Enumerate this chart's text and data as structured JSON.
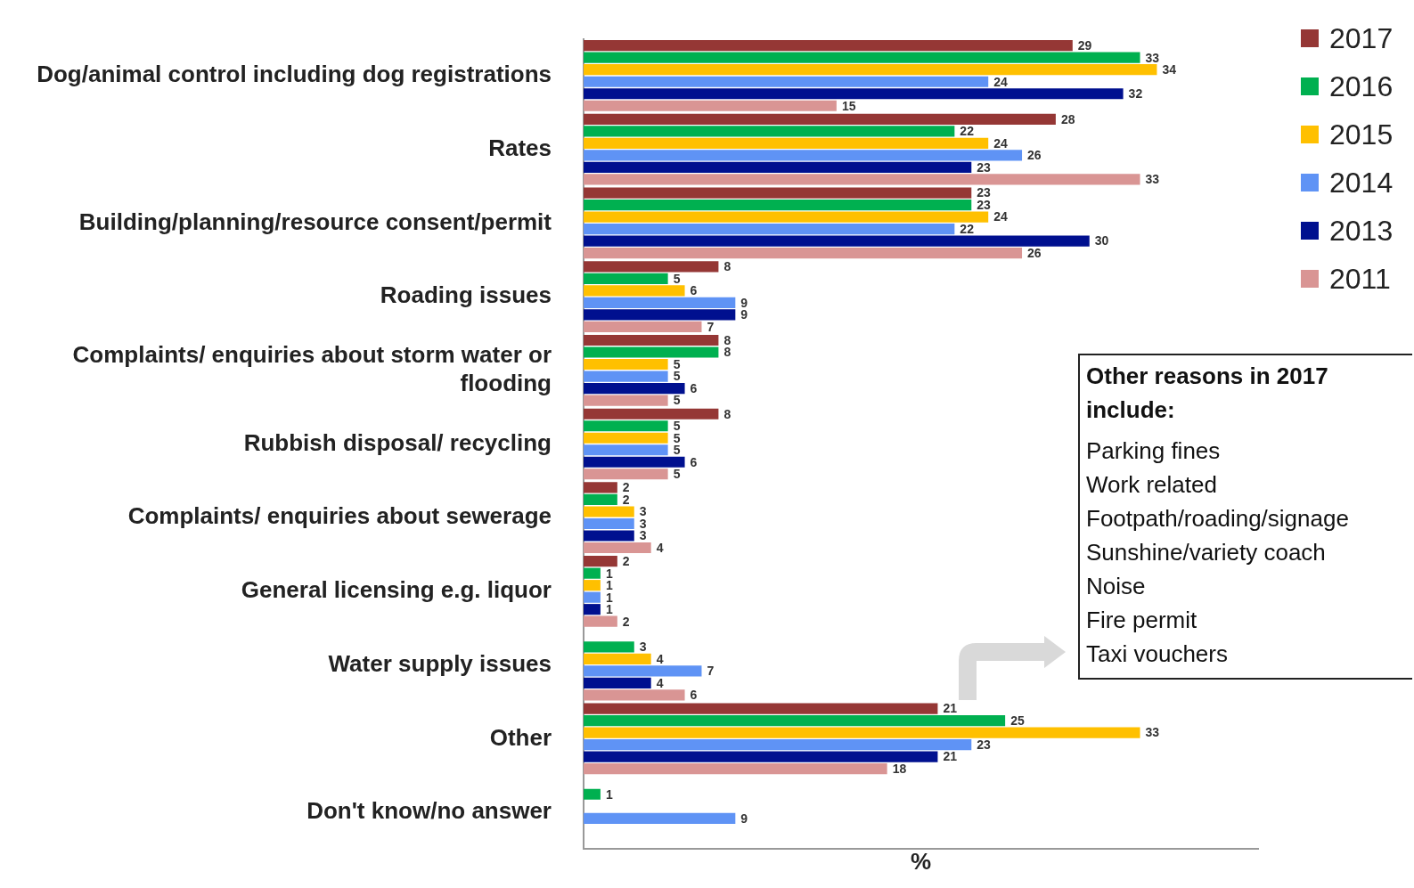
{
  "chart_data": {
    "type": "bar",
    "orientation": "horizontal",
    "xlabel": "%",
    "categories": [
      "Dog/animal control including dog registrations",
      "Rates",
      "Building/planning/resource consent/permit",
      "Roading issues",
      "Complaints/ enquiries about storm water or flooding",
      "Rubbish disposal/ recycling",
      "Complaints/ enquiries about sewerage",
      "General licensing e.g. liquor",
      "Water supply issues",
      "Other",
      "Don't know/no answer"
    ],
    "series": [
      {
        "name": "2017",
        "color": "#953735",
        "values": [
          29,
          28,
          23,
          8,
          8,
          8,
          2,
          2,
          null,
          21,
          null
        ]
      },
      {
        "name": "2016",
        "color": "#00b050",
        "values": [
          33,
          22,
          23,
          5,
          8,
          5,
          2,
          1,
          3,
          25,
          1
        ]
      },
      {
        "name": "2015",
        "color": "#ffc000",
        "values": [
          34,
          24,
          24,
          6,
          5,
          5,
          3,
          1,
          4,
          33,
          null
        ]
      },
      {
        "name": "2014",
        "color": "#5f93f5",
        "values": [
          24,
          26,
          22,
          9,
          5,
          5,
          3,
          1,
          7,
          23,
          9
        ]
      },
      {
        "name": "2013",
        "color": "#00108f",
        "values": [
          32,
          23,
          30,
          9,
          6,
          6,
          3,
          1,
          4,
          21,
          null
        ]
      },
      {
        "name": "2011",
        "color": "#d99594",
        "values": [
          15,
          33,
          26,
          7,
          5,
          5,
          4,
          2,
          6,
          18,
          null
        ]
      }
    ],
    "xlim": [
      0,
      40
    ],
    "tick_labels": "y",
    "grid": false,
    "legend": "top right",
    "data_labels": true,
    "annotations": [
      "Other reasons in 2017 include:",
      "Parking fines",
      "Work related",
      "Footpath/roading/signage",
      "Sunshine/variety coach",
      "Noise",
      "Fire permit",
      "Taxi vouchers"
    ]
  }
}
